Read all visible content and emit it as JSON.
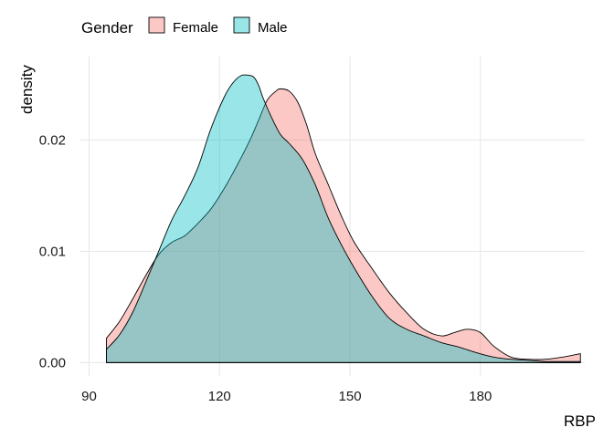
{
  "chart_data": {
    "type": "area",
    "subtype": "density",
    "title": "",
    "xlabel": "RBP",
    "ylabel": "density",
    "xlim": [
      88,
      204
    ],
    "ylim": [
      -0.0012,
      0.0275
    ],
    "x_ticks": [
      90,
      120,
      150,
      180
    ],
    "y_ticks": [
      0.0,
      0.01,
      0.02
    ],
    "x_tick_labels": [
      "90",
      "120",
      "150",
      "180"
    ],
    "y_tick_labels": [
      "0.00",
      "0.01",
      "0.02"
    ],
    "grid": true,
    "legend": {
      "title": "Gender",
      "position": "top-left"
    },
    "series": [
      {
        "name": "Female",
        "color": "#F8766D",
        "x": [
          94,
          97,
          100,
          103,
          106,
          109,
          112,
          115,
          118,
          121,
          124,
          127,
          129,
          131,
          133,
          134,
          136,
          138,
          140,
          142,
          145,
          148,
          151,
          155,
          159,
          163,
          167,
          171,
          174,
          177,
          180,
          183,
          187,
          191,
          195,
          199,
          203
        ],
        "y": [
          0.0022,
          0.0037,
          0.0057,
          0.0078,
          0.0097,
          0.0108,
          0.0114,
          0.0125,
          0.0138,
          0.0156,
          0.0177,
          0.02,
          0.0218,
          0.0236,
          0.0244,
          0.0246,
          0.0244,
          0.0234,
          0.0214,
          0.0188,
          0.016,
          0.0132,
          0.0108,
          0.0085,
          0.0063,
          0.0045,
          0.003,
          0.0024,
          0.0027,
          0.003,
          0.0027,
          0.0015,
          0.0005,
          0.0003,
          0.0003,
          0.0005,
          0.0008
        ]
      },
      {
        "name": "Male",
        "color": "#00BFC4",
        "x": [
          94,
          97,
          100,
          103,
          106,
          109,
          112,
          115,
          118,
          121,
          123,
          125,
          127,
          128,
          129,
          130,
          132,
          134,
          136,
          139,
          142,
          145,
          148,
          151,
          155,
          159,
          163,
          167,
          171,
          175,
          179,
          183,
          187,
          191,
          195,
          199,
          203
        ],
        "y": [
          0.0012,
          0.0025,
          0.0045,
          0.0072,
          0.01,
          0.0128,
          0.015,
          0.0175,
          0.021,
          0.0238,
          0.0251,
          0.0258,
          0.0258,
          0.0256,
          0.0249,
          0.0238,
          0.022,
          0.0205,
          0.0197,
          0.0183,
          0.016,
          0.013,
          0.0106,
          0.0085,
          0.006,
          0.004,
          0.003,
          0.0024,
          0.0018,
          0.0014,
          0.0009,
          0.0005,
          0.0003,
          0.0002,
          0.0001,
          0.0001,
          0.0001
        ]
      }
    ]
  }
}
